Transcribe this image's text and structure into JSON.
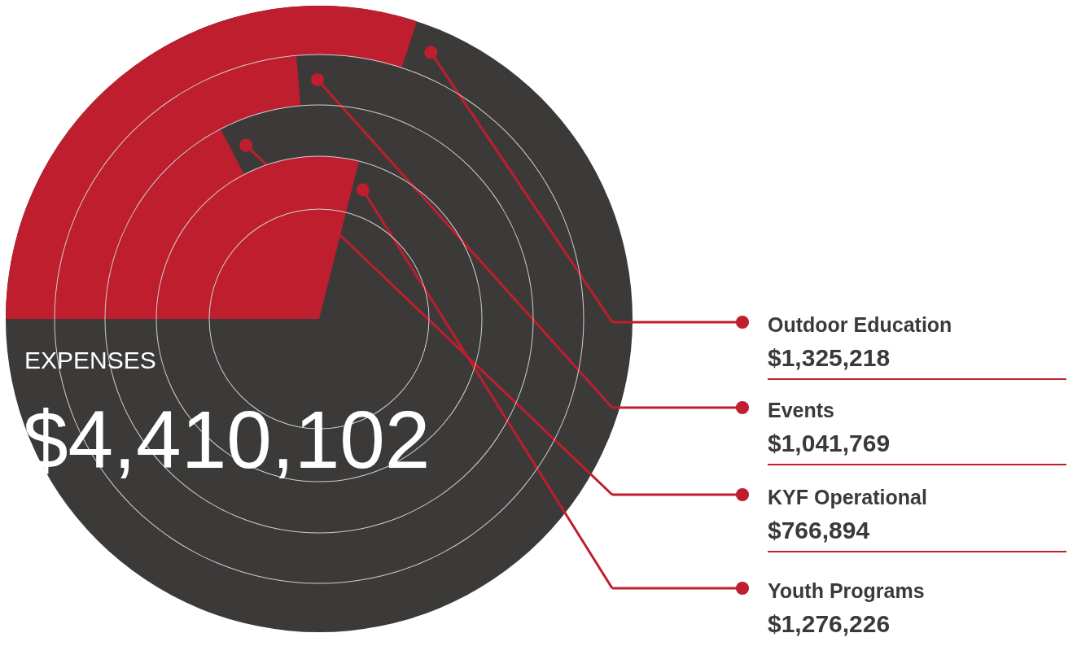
{
  "chart_data": {
    "type": "other",
    "title": "EXPENSES",
    "annotations": [
      "$4,410,102"
    ],
    "categories": [
      "Outdoor Education",
      "Events",
      "KYF Operational",
      "Youth Programs"
    ],
    "values": [
      1325218,
      1041769,
      766894,
      1276226
    ],
    "value_labels": [
      "$1,325,218",
      "$1,041,769",
      "$766,894",
      "$1,276,226"
    ],
    "color": "#be1e2d"
  }
}
